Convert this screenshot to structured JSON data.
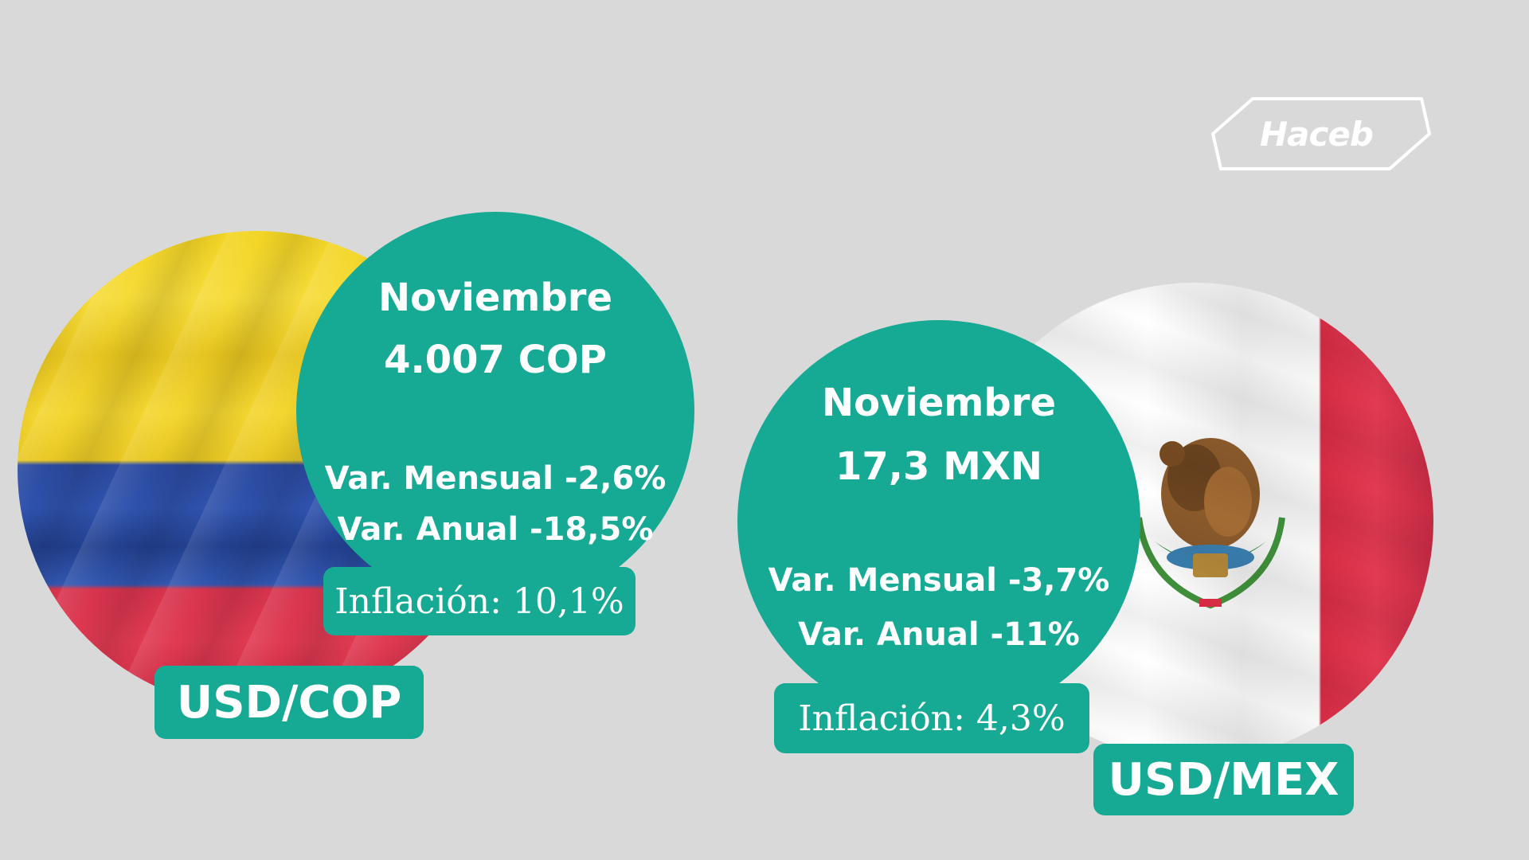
{
  "logo": {
    "text": "Haceb"
  },
  "colombia": {
    "month": "Noviembre",
    "rate": "4.007 COP",
    "monthly": "Var. Mensual -2,6%",
    "annual": "Var. Anual -18,5%",
    "inflation": "Inflación: 10,1%",
    "pair": "USD/COP"
  },
  "mexico": {
    "month": "Noviembre",
    "rate": "17,3 MXN",
    "monthly": "Var. Mensual -3,7%",
    "annual": "Var. Anual -11%",
    "inflation": "Inflación: 4,3%",
    "pair": "USD/MEX"
  },
  "colors": {
    "background": "#d9d9d9",
    "teal": "#16a994",
    "text": "#ffffff"
  },
  "icons": {
    "colombia_flag": "colombia-flag-icon",
    "mexico_flag": "mexico-flag-icon",
    "mexico_emblem": "eagle-emblem-icon"
  }
}
